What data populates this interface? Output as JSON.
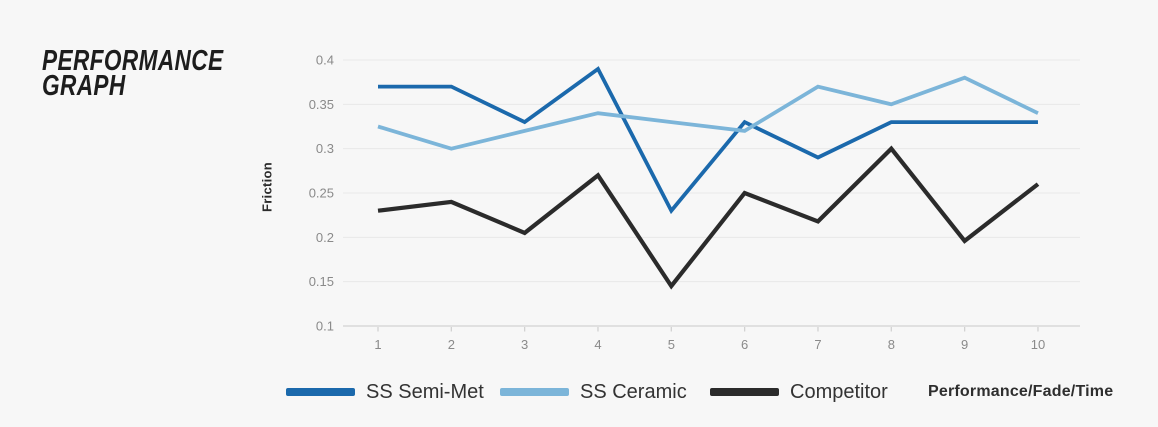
{
  "title": {
    "line1": "PERFORMANCE",
    "line2": "GRAPH"
  },
  "chart_data": {
    "type": "line",
    "title": "PERFORMANCE GRAPH",
    "xlabel": "",
    "ylabel": "Friction",
    "footer_label": "Performance/Fade/Time",
    "x": [
      1,
      2,
      3,
      4,
      5,
      6,
      7,
      8,
      9,
      10
    ],
    "x_tick_labels": [
      "1",
      "2",
      "3",
      "4",
      "5",
      "6",
      "7",
      "8",
      "9",
      "10"
    ],
    "y_tick_labels": [
      "0.4",
      "0.35",
      "0.3",
      "0.25",
      "0.2",
      "0.15",
      "0.1"
    ],
    "y_tick_values": [
      0.4,
      0.35,
      0.3,
      0.25,
      0.2,
      0.15,
      0.1
    ],
    "ylim": [
      0.1,
      0.4
    ],
    "grid": "horizontal",
    "legend_position": "bottom",
    "series": [
      {
        "name": "SS Semi-Met",
        "color": "#1b69ac",
        "values": [
          0.37,
          0.37,
          0.33,
          0.39,
          0.23,
          0.33,
          0.29,
          0.33,
          0.33,
          0.33
        ]
      },
      {
        "name": "SS Ceramic",
        "color": "#7cb5d9",
        "values": [
          0.325,
          0.3,
          0.32,
          0.34,
          0.33,
          0.32,
          0.37,
          0.35,
          0.38,
          0.34
        ]
      },
      {
        "name": "Competitor",
        "color": "#2b2b2b",
        "values": [
          0.23,
          0.24,
          0.205,
          0.27,
          0.145,
          0.25,
          0.218,
          0.3,
          0.196,
          0.26
        ]
      }
    ]
  },
  "colors": {
    "background": "#f7f7f7",
    "gridline": "#e8e8e8",
    "axis": "#d2d2d2",
    "tick_label": "#8a8a8a",
    "title_text": "#1d1d1d",
    "legend_text": "#333333"
  }
}
